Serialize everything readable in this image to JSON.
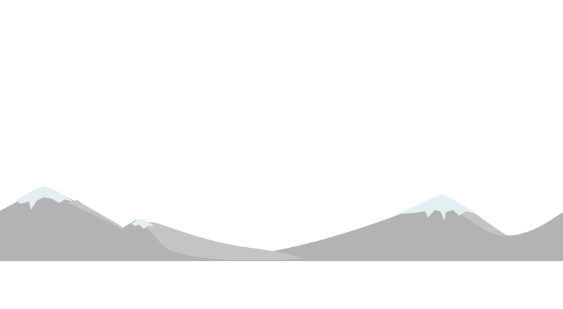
{
  "scene": {
    "background_color": "#ffffff",
    "mountain_color": "#b3b3b3",
    "mountain_highlight_color": "#c4c4c4",
    "snow_color": "#e3eff1",
    "icons": [
      "mountain-range-icon",
      "snow-cap-icon"
    ]
  }
}
